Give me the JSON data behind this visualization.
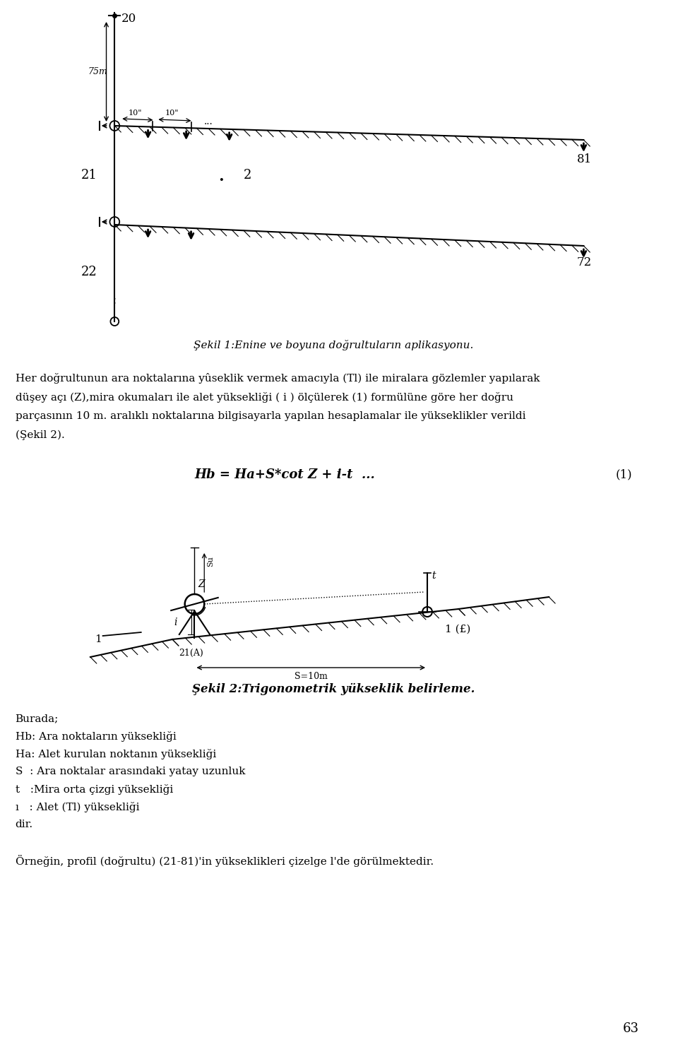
{
  "page_bg": "#ffffff",
  "page_width": 9.6,
  "page_height": 14.82,
  "fig1_caption": "Şekil 1:Enine ve boyuna doğrultuların aplikasyonu.",
  "paragraph_lines": [
    "Her doğrultunun ara noktalarına yûseklik vermek amacıyla (Tl) ile miralara gözlemler yapılarak",
    "düşey açı (Z),mira okumaları ile alet yüksekliği ( i ) ölçülerek (1) formülüne göre her doğru",
    "parçasının 10 m. aralıklı noktalarına bilgisayarla yapılan hesaplamalar ile yükseklikler verildi",
    "(Şekil 2)."
  ],
  "formula": "Hb = Ha+S*cot Z + i-t  ...",
  "formula_number": "(1)",
  "fig2_caption": "Şekil 2:Trigonometrik yükseklik belirleme.",
  "legend_title": "Burada;",
  "legend_items": [
    "Hb: Ara noktaların yüksekliği",
    "Ha: Alet kurulan noktanın yüksekliği",
    "S  : Ara noktalar arasındaki yatay uzunluk",
    "t   :Mira orta çizgi yüksekliği",
    "ı   : Alet (Tl) yüksekliği",
    "dir."
  ],
  "last_line": "Örneğin, profil (doğrultu) (21-81)'in yükseklikleri çizelge l'de görülmektedir.",
  "page_number": "63",
  "bg_color": "#ffffff"
}
